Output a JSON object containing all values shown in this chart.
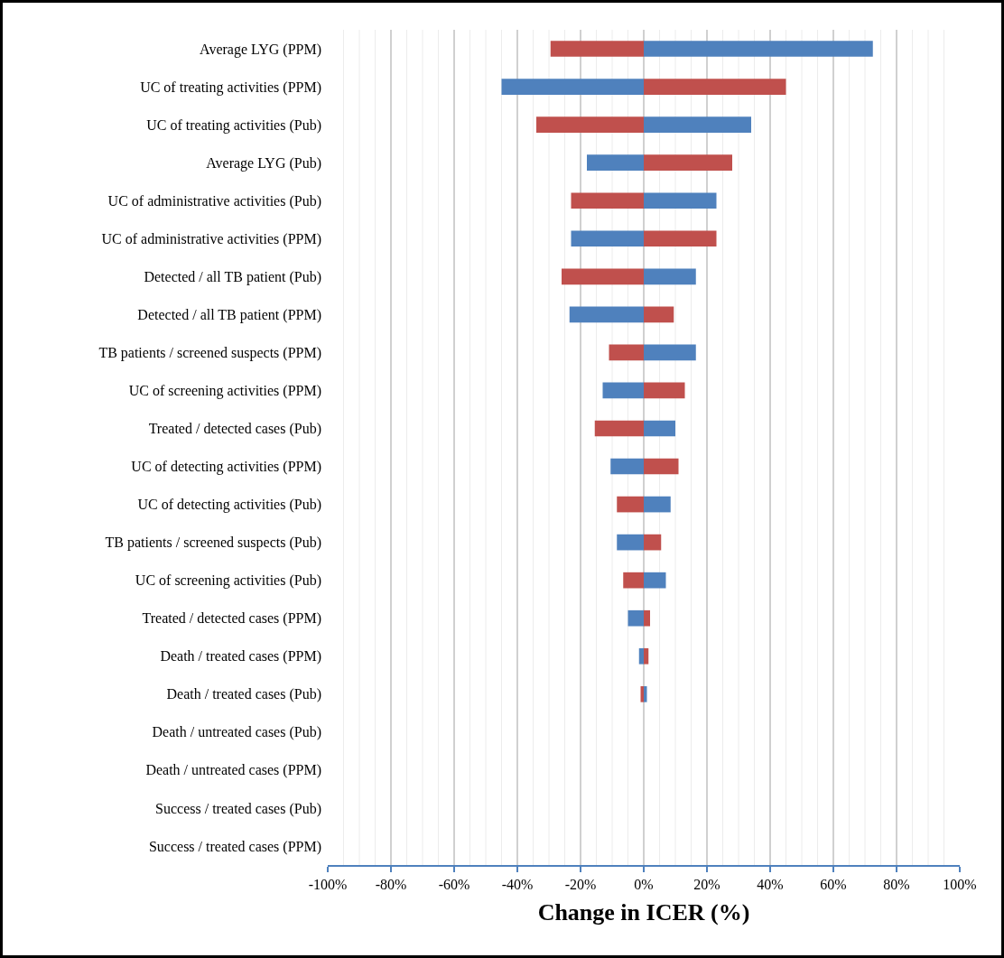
{
  "chart_data": {
    "type": "bar",
    "orientation": "horizontal",
    "xlabel": "Change in ICER (%)",
    "categories": [
      "Average LYG (PPM)",
      "UC of treating activities (PPM)",
      "UC of treating activities (Pub)",
      "Average LYG (Pub)",
      "UC of administrative activities (Pub)",
      "UC of administrative activities (PPM)",
      "Detected / all TB patient (Pub)",
      "Detected / all TB patient (PPM)",
      "TB patients / screened suspects (PPM)",
      "UC of screening activities (PPM)",
      "Treated / detected cases (Pub)",
      "UC of detecting activities (PPM)",
      "UC of detecting activities (Pub)",
      "TB patients / screened suspects (Pub)",
      "UC of screening activities (Pub)",
      "Treated / detected cases (PPM)",
      "Death / treated cases (PPM)",
      "Death / treated cases (Pub)",
      "Death / untreated cases (Pub)",
      "Death / untreated cases (PPM)",
      "Success / treated cases (Pub)",
      "Success / treated cases (PPM)"
    ],
    "series": [
      {
        "color": "#4f81bd",
        "values": [
          72.5,
          -45,
          34,
          -18,
          23,
          -23,
          16.5,
          -23.5,
          16.5,
          -13,
          10,
          -10.5,
          8.5,
          -8.5,
          7,
          -5,
          -1.5,
          1,
          0,
          0,
          0,
          0
        ]
      },
      {
        "color": "#c0504d",
        "values": [
          -29.5,
          45,
          -34,
          28,
          -23,
          23,
          -26,
          9.5,
          -11,
          13,
          -15.5,
          11,
          -8.5,
          5.5,
          -6.5,
          2,
          1.5,
          -1,
          0,
          0,
          0,
          0
        ]
      }
    ],
    "xlim": [
      -100,
      100
    ],
    "xticks": [
      {
        "value": -100,
        "label": "-100%"
      },
      {
        "value": -95,
        "label": null
      },
      {
        "value": -90,
        "label": null
      },
      {
        "value": -85,
        "label": null
      },
      {
        "value": -80,
        "label": "-80%"
      },
      {
        "value": -75,
        "label": null
      },
      {
        "value": -70,
        "label": null
      },
      {
        "value": -65,
        "label": null
      },
      {
        "value": -60,
        "label": "-60%"
      },
      {
        "value": -55,
        "label": null
      },
      {
        "value": -50,
        "label": null
      },
      {
        "value": -45,
        "label": null
      },
      {
        "value": -40,
        "label": "-40%"
      },
      {
        "value": -35,
        "label": null
      },
      {
        "value": -30,
        "label": null
      },
      {
        "value": -25,
        "label": null
      },
      {
        "value": -20,
        "label": "-20%"
      },
      {
        "value": -15,
        "label": null
      },
      {
        "value": -10,
        "label": null
      },
      {
        "value": -5,
        "label": null
      },
      {
        "value": 0,
        "label": "0%"
      },
      {
        "value": 5,
        "label": null
      },
      {
        "value": 10,
        "label": null
      },
      {
        "value": 15,
        "label": null
      },
      {
        "value": 20,
        "label": "20%"
      },
      {
        "value": 25,
        "label": null
      },
      {
        "value": 30,
        "label": null
      },
      {
        "value": 35,
        "label": null
      },
      {
        "value": 40,
        "label": "40%"
      },
      {
        "value": 45,
        "label": null
      },
      {
        "value": 50,
        "label": null
      },
      {
        "value": 55,
        "label": null
      },
      {
        "value": 60,
        "label": "60%"
      },
      {
        "value": 65,
        "label": null
      },
      {
        "value": 70,
        "label": null
      },
      {
        "value": 75,
        "label": null
      },
      {
        "value": 80,
        "label": "80%"
      },
      {
        "value": 85,
        "label": null
      },
      {
        "value": 90,
        "label": null
      },
      {
        "value": 95,
        "label": null
      },
      {
        "value": 100,
        "label": "100%"
      }
    ],
    "grid": "x",
    "stacked": true
  }
}
